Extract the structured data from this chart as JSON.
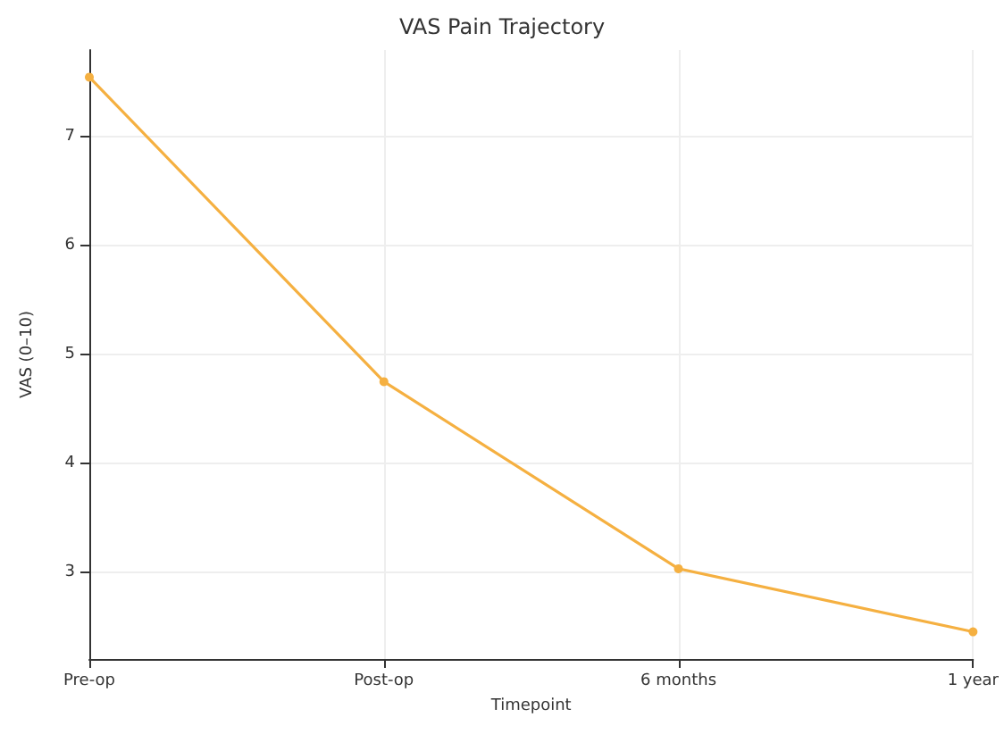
{
  "chart_data": {
    "type": "line",
    "title": "VAS Pain Trajectory",
    "xlabel": "Timepoint",
    "ylabel": "VAS (0–10)",
    "categories": [
      "Pre-op",
      "Post-op",
      "6 months",
      "1 year"
    ],
    "series": [
      {
        "color": "#f5b041",
        "values": [
          7.55,
          4.75,
          3.03,
          2.45
        ]
      }
    ],
    "ylim": [
      2.2,
      7.8
    ],
    "yticks": [
      3,
      4,
      5,
      6,
      7
    ],
    "grid": true,
    "marker": "circle",
    "line_style": "solid"
  }
}
